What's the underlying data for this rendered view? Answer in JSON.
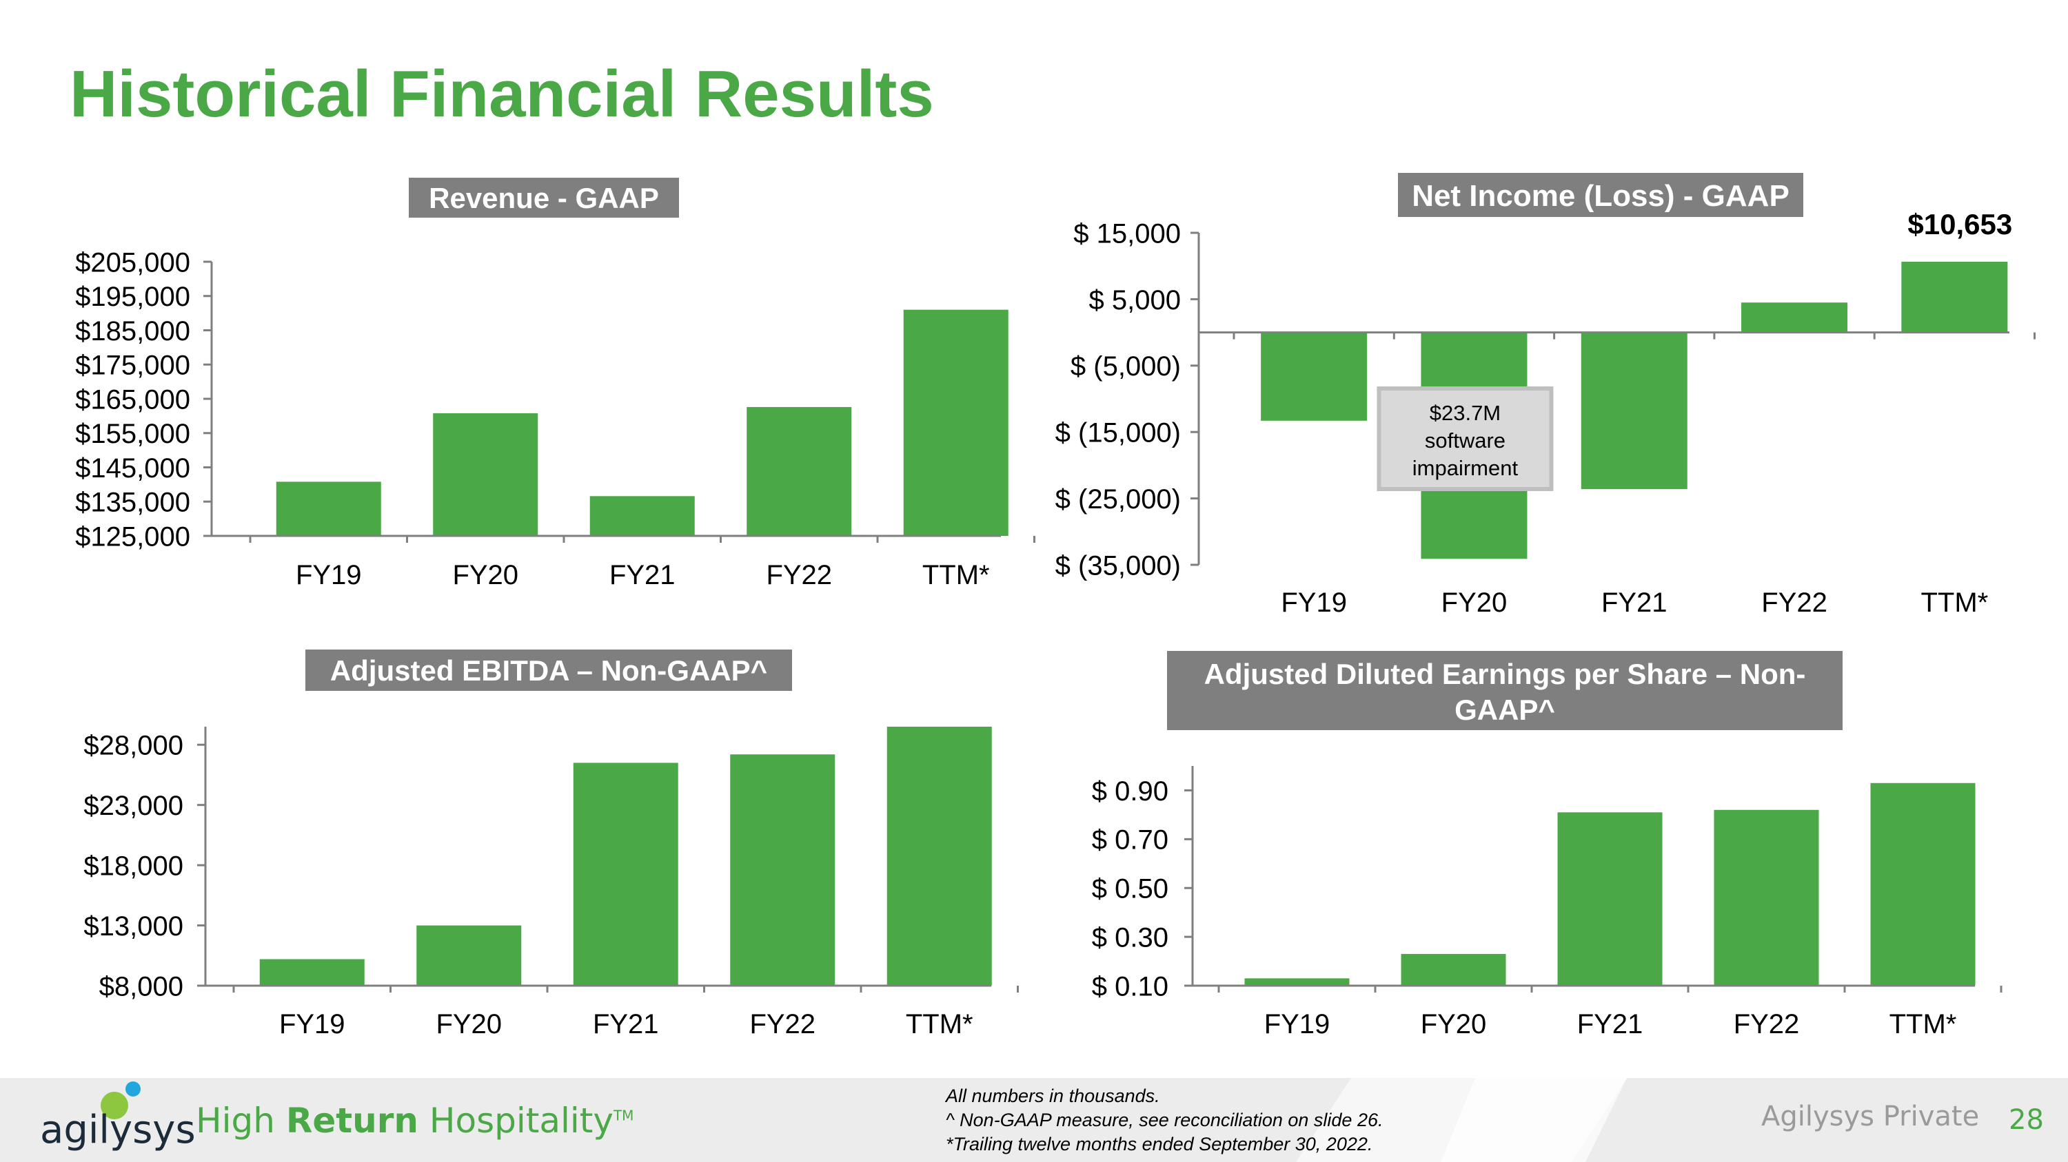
{
  "page": {
    "title": "Historical Financial Results",
    "accent_color": "#4aa846",
    "title_box_color": "#7f7f7f"
  },
  "chart_data": [
    {
      "type": "bar",
      "title": "Revenue - GAAP",
      "categories": [
        "FY19",
        "FY20",
        "FY21",
        "FY22",
        "TTM*"
      ],
      "values": [
        140800,
        160800,
        136600,
        162600,
        191000
      ],
      "ylim": [
        125000,
        205000
      ],
      "yticks": [
        205000,
        195000,
        185000,
        175000,
        165000,
        155000,
        145000,
        135000,
        125000
      ],
      "ytick_labels": [
        "$205,000",
        "$195,000",
        "$185,000",
        "$175,000",
        "$165,000",
        "$155,000",
        "$145,000",
        "$135,000",
        "$125,000"
      ],
      "xlabel": "",
      "ylabel": "",
      "color": "#4aa846"
    },
    {
      "type": "bar",
      "title": "Net Income (Loss) - GAAP",
      "categories": [
        "FY19",
        "FY20",
        "FY21",
        "FY22",
        "TTM*"
      ],
      "values": [
        -13300,
        -34100,
        -23600,
        4500,
        10653
      ],
      "ylim": [
        -35000,
        15000
      ],
      "yticks": [
        15000,
        5000,
        -5000,
        -15000,
        -25000,
        -35000
      ],
      "ytick_labels": [
        "$ 15,000",
        "$ 5,000",
        "$ (5,000)",
        "$ (15,000)",
        "$ (25,000)",
        "$ (35,000)"
      ],
      "data_labels": [
        {
          "category": "TTM*",
          "text": "$10,653"
        }
      ],
      "annotations": [
        {
          "category": "FY20",
          "lines": [
            "$23.7M",
            "software",
            "impairment"
          ]
        }
      ],
      "xlabel": "",
      "ylabel": "",
      "color": "#4aa846"
    },
    {
      "type": "bar",
      "title": "Adjusted EBITDA – Non-GAAP^",
      "categories": [
        "FY19",
        "FY20",
        "FY21",
        "FY22",
        "TTM*"
      ],
      "values": [
        10200,
        13000,
        26500,
        27200,
        29500
      ],
      "ylim": [
        8000,
        29500
      ],
      "yticks": [
        28000,
        23000,
        18000,
        13000,
        8000
      ],
      "ytick_labels": [
        "$28,000",
        "$23,000",
        "$18,000",
        "$13,000",
        "$8,000"
      ],
      "xlabel": "",
      "ylabel": "",
      "color": "#4aa846"
    },
    {
      "type": "bar",
      "title": "Adjusted Diluted Earnings per Share – Non-GAAP^",
      "categories": [
        "FY19",
        "FY20",
        "FY21",
        "FY22",
        "TTM*"
      ],
      "values": [
        0.13,
        0.23,
        0.81,
        0.82,
        0.93
      ],
      "ylim": [
        0.1,
        1.0
      ],
      "yticks": [
        0.9,
        0.7,
        0.5,
        0.3,
        0.1
      ],
      "ytick_labels": [
        "$ 0.90",
        "$ 0.70",
        "$ 0.50",
        "$ 0.30",
        "$ 0.10"
      ],
      "xlabel": "",
      "ylabel": "",
      "color": "#4aa846"
    }
  ],
  "footer": {
    "logo_text": "agilysys",
    "tagline_pre": "High ",
    "tagline_bold": "Return",
    "tagline_post": " Hospitality",
    "tagline_tm": "TM",
    "notes": [
      "All numbers in thousands.",
      "^ Non-GAAP measure, see reconciliation on slide 26.",
      "*Trailing twelve months ended September 30, 2022."
    ],
    "private_label": "Agilysys Private",
    "page_number": "28"
  }
}
